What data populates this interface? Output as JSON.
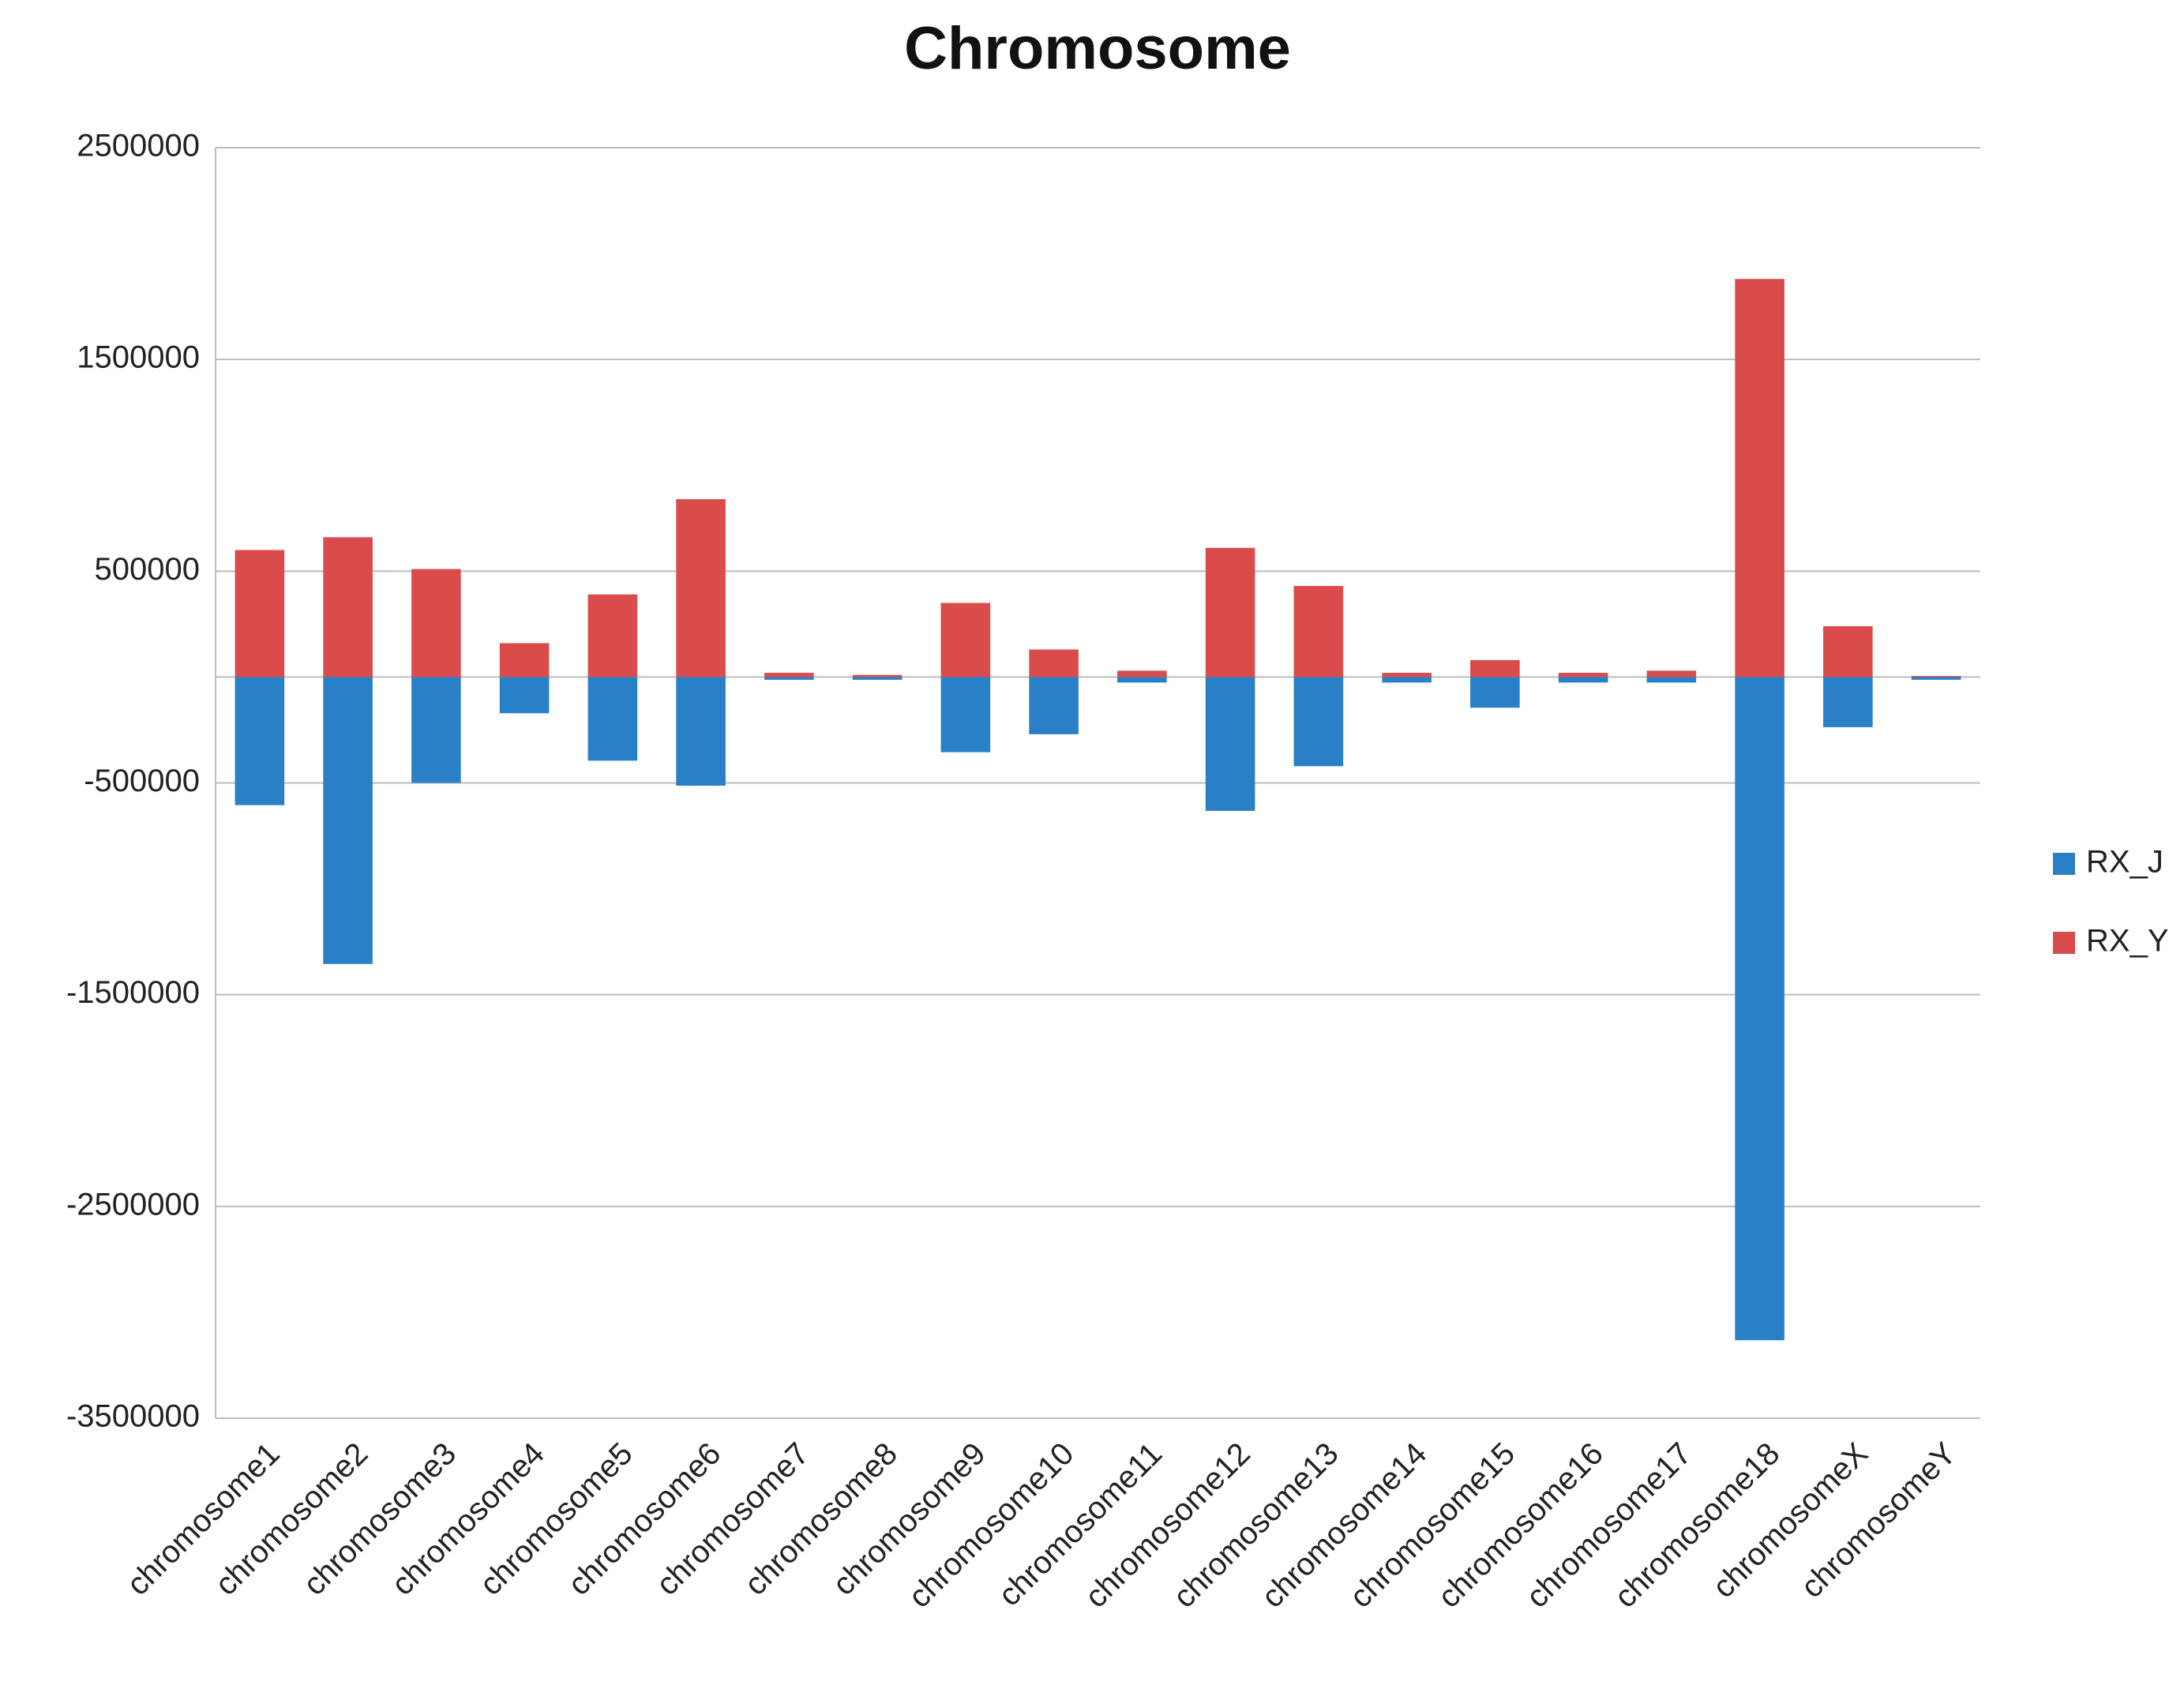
{
  "chart_data": {
    "type": "bar",
    "stacked": true,
    "title": "Chromosome",
    "categories": [
      "chromosome1",
      "chromosome2",
      "chromosome3",
      "chromosome4",
      "chromosome5",
      "chromosome6",
      "chromosome7",
      "chromosome8",
      "chromosome9",
      "chromosome10",
      "chromosome11",
      "chromosome12",
      "chromosome13",
      "chromosome14",
      "chromosome15",
      "chromosome16",
      "chromosome17",
      "chromosome18",
      "chromosomeX",
      "chromosomeY"
    ],
    "series": [
      {
        "name": "RX_J",
        "color": "#2a80c6",
        "values": [
          -605000,
          -1355000,
          -500000,
          -171000,
          -395000,
          -513000,
          -13000,
          -13000,
          -355000,
          -270000,
          -26000,
          -632000,
          -421000,
          -26000,
          -145000,
          -26000,
          -26000,
          -3132000,
          -237000,
          -13000
        ]
      },
      {
        "name": "RX_Y",
        "color": "#da4b4b",
        "values": [
          600000,
          660000,
          510000,
          160000,
          390000,
          840000,
          20000,
          10000,
          350000,
          130000,
          30000,
          610000,
          430000,
          20000,
          80000,
          20000,
          30000,
          1880000,
          240000,
          5000
        ]
      }
    ],
    "ylim": [
      -3500000,
      2500000
    ],
    "yticks": [
      2500000,
      1500000,
      500000,
      -500000,
      -1500000,
      -2500000,
      -3500000
    ],
    "grid": true,
    "legend": "right"
  }
}
